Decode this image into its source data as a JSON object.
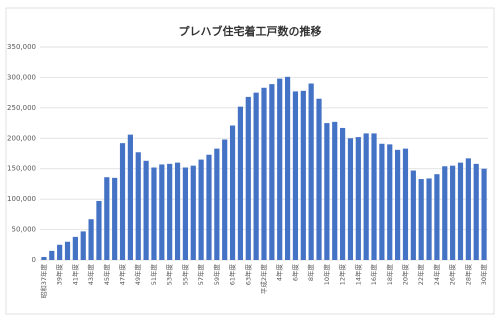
{
  "chart_data": {
    "type": "bar",
    "title": "プレハブ住宅着工戸数の推移",
    "categories": [
      "昭和37年度",
      null,
      "39年度",
      null,
      "41年度",
      null,
      "43年度",
      null,
      "45年度",
      null,
      "47年度",
      null,
      "49年度",
      null,
      "51年度",
      null,
      "53年度",
      null,
      "55年度",
      null,
      "57年度",
      null,
      "59年度",
      null,
      "61年度",
      null,
      "63年度",
      null,
      "平成2年度",
      null,
      "4年度",
      null,
      "6年度",
      null,
      "8年度",
      null,
      "10年度",
      null,
      "12年度",
      null,
      "14年度",
      null,
      "16年度",
      null,
      "18年度",
      null,
      "20年度",
      null,
      "22年度",
      null,
      "24年度",
      null,
      "26年度",
      null,
      "28年度",
      null,
      "30年度"
    ],
    "values": [
      5000,
      15000,
      25000,
      30000,
      38000,
      47000,
      67000,
      97000,
      136000,
      135000,
      192000,
      206000,
      177000,
      163000,
      152000,
      157000,
      158000,
      160000,
      152000,
      155000,
      165000,
      173000,
      183000,
      198000,
      221000,
      252000,
      268000,
      275000,
      283000,
      289000,
      298000,
      301000,
      277000,
      278000,
      290000,
      265000,
      225000,
      227000,
      217000,
      200000,
      202000,
      208000,
      208000,
      191000,
      190000,
      181000,
      183000,
      147000,
      133000,
      134000,
      141000,
      154000,
      155000,
      160000,
      167000,
      158000,
      150000
    ],
    "color": "#4472c4",
    "ylim": [
      0,
      350000
    ],
    "yticks": [
      0,
      {
        "value": 50000,
        "label": "50,000"
      },
      {
        "value": 100000,
        "label": "100,000"
      },
      {
        "value": 150000,
        "label": "150,000"
      },
      {
        "value": 200000,
        "label": "200,000"
      },
      {
        "value": 250000,
        "label": "250,000"
      },
      {
        "value": 300000,
        "label": "300,000"
      },
      {
        "value": 350000,
        "label": "350,000"
      }
    ],
    "grid": true
  }
}
